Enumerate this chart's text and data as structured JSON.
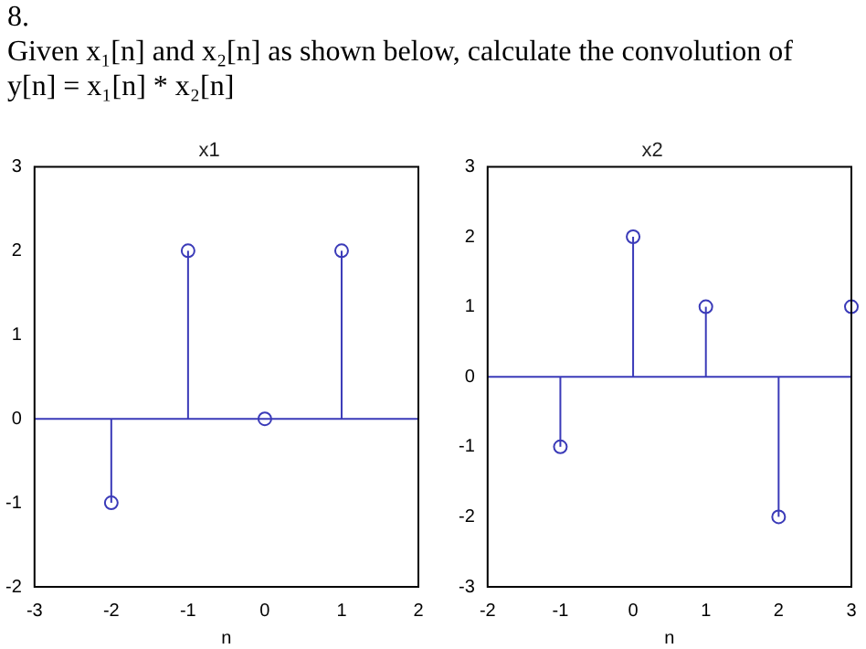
{
  "chart_data": [
    {
      "type": "lollipop",
      "title": "x1",
      "xlabel": "n",
      "annotations": [
        "8.",
        "Given x₁[n] and x₂[n] as shown below, calculate the convolution of y[n] = x₁[n] * x₂[n]"
      ],
      "x": [
        -2,
        -1,
        0,
        1
      ],
      "values": [
        -1,
        2,
        0,
        2
      ],
      "color": "#3a3ab8",
      "marker": "circle",
      "xlim": [
        -3,
        2
      ],
      "xticks": [
        -3,
        -2,
        -1,
        0,
        1,
        2
      ],
      "ylim": [
        -2,
        3
      ],
      "yticks": [
        -2,
        -1,
        0,
        1,
        2,
        3
      ],
      "ref_lines": [
        {
          "axis": "y",
          "value": 0,
          "color": "#3a3ab8"
        }
      ]
    },
    {
      "type": "lollipop",
      "title": "x2",
      "xlabel": "n",
      "x": [
        -1,
        0,
        1,
        2,
        3
      ],
      "values": [
        -1,
        2,
        1,
        -2,
        1
      ],
      "color": "#3a3ab8",
      "marker": "circle",
      "xlim": [
        -2,
        3
      ],
      "xticks": [
        -2,
        -1,
        0,
        1,
        2,
        3
      ],
      "ylim": [
        -3,
        3
      ],
      "yticks": [
        -3,
        -2,
        -1,
        0,
        1,
        2,
        3
      ],
      "ref_lines": [
        {
          "axis": "y",
          "value": 0,
          "color": "#3a3ab8"
        }
      ]
    }
  ]
}
